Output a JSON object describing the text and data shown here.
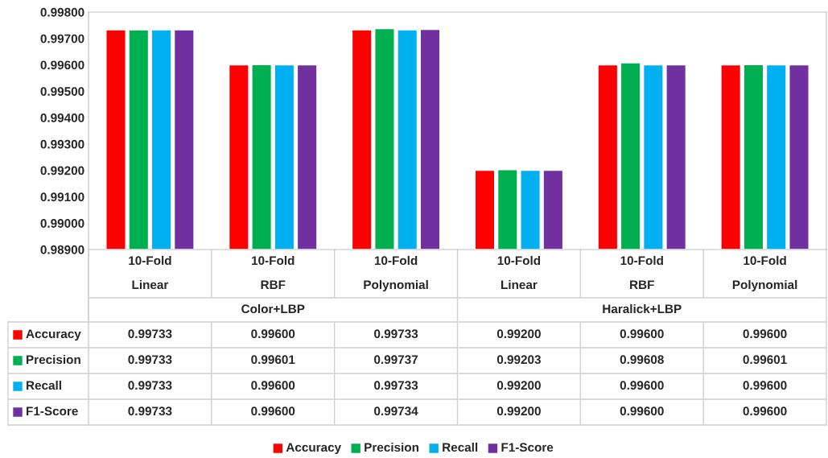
{
  "chart_data": {
    "type": "bar",
    "categories": [
      "10-Fold\nLinear",
      "10-Fold\nRBF",
      "10-Fold\nPolynomial",
      "10-Fold\nLinear",
      "10-Fold\nRBF",
      "10-Fold\nPolynomial"
    ],
    "annotations": [
      "Color+LBP",
      "Haralick+LBP"
    ],
    "series": [
      {
        "name": "Accuracy",
        "color": "#ff0000",
        "values": [
          0.99733,
          0.996,
          0.99733,
          0.992,
          0.996,
          0.996
        ],
        "value_labels": [
          "0.99733",
          "0.99600",
          "0.99733",
          "0.99200",
          "0.99600",
          "0.99600"
        ]
      },
      {
        "name": "Precision",
        "color": "#00b050",
        "values": [
          0.99733,
          0.99601,
          0.99737,
          0.99203,
          0.99608,
          0.99601
        ],
        "value_labels": [
          "0.99733",
          "0.99601",
          "0.99737",
          "0.99203",
          "0.99608",
          "0.99601"
        ]
      },
      {
        "name": "Recall",
        "color": "#00b0f0",
        "values": [
          0.99733,
          0.996,
          0.99733,
          0.992,
          0.996,
          0.996
        ],
        "value_labels": [
          "0.99733",
          "0.99600",
          "0.99733",
          "0.99200",
          "0.99600",
          "0.99600"
        ]
      },
      {
        "name": "F1-Score",
        "color": "#7030a0",
        "values": [
          0.99733,
          0.996,
          0.99734,
          0.992,
          0.996,
          0.996
        ],
        "value_labels": [
          "0.99733",
          "0.99600",
          "0.99734",
          "0.99200",
          "0.99600",
          "0.99600"
        ]
      }
    ],
    "ylim": [
      0.989,
      0.998
    ],
    "yticks": [
      {
        "value": 0.989,
        "label": "0.98900"
      },
      {
        "value": 0.99,
        "label": "0.99000"
      },
      {
        "value": 0.991,
        "label": "0.99100"
      },
      {
        "value": 0.992,
        "label": "0.99200"
      },
      {
        "value": 0.993,
        "label": "0.99300"
      },
      {
        "value": 0.994,
        "label": "0.99400"
      },
      {
        "value": 0.995,
        "label": "0.99500"
      },
      {
        "value": 0.996,
        "label": "0.99600"
      },
      {
        "value": 0.997,
        "label": "0.99700"
      },
      {
        "value": 0.998,
        "label": "0.99800"
      }
    ],
    "grid": false,
    "legend": "bottom"
  }
}
